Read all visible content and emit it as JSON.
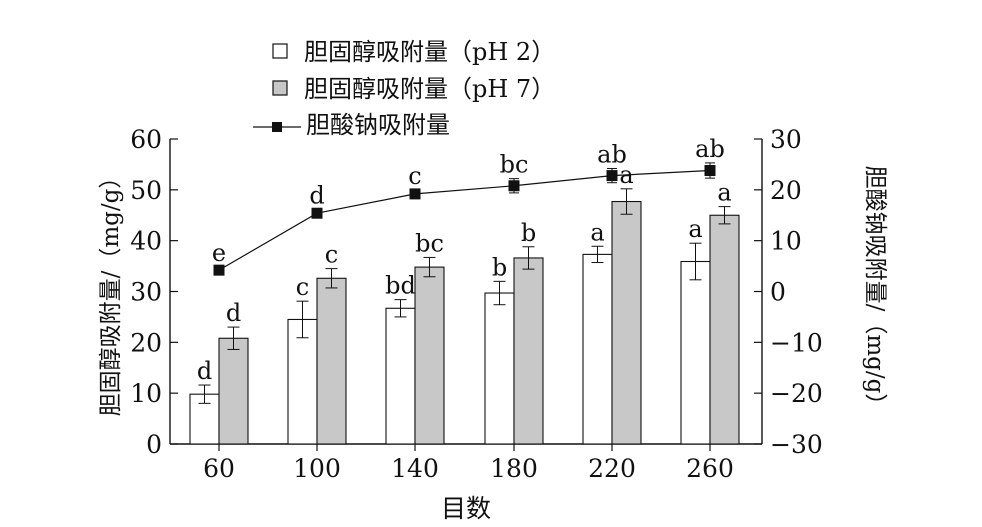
{
  "chart_data": {
    "type": "bar",
    "categories": [
      "60",
      "100",
      "140",
      "180",
      "220",
      "260"
    ],
    "xlabel": "目数",
    "ylabel_left": "胆固醇吸附量/（mg/g）",
    "ylabel_right": "胆酸钠吸附量/（mg/g）",
    "ylim_left": [
      0,
      60
    ],
    "yticks_left": [
      "0",
      "10",
      "20",
      "30",
      "40",
      "50",
      "60"
    ],
    "ylim_right": [
      -30,
      30
    ],
    "yticks_right": [
      "−30",
      "−20",
      "−10",
      "0",
      "10",
      "20",
      "30"
    ],
    "legend_position": "top-left",
    "grid": false,
    "series": [
      {
        "name": "胆固醇吸附量（pH 2）",
        "kind": "bar",
        "axis": "left",
        "fill": "#ffffff",
        "legend_marker": "□",
        "values": [
          9.8,
          24.5,
          26.7,
          29.7,
          37.3,
          35.9
        ],
        "errors": [
          1.8,
          3.6,
          1.7,
          2.3,
          1.6,
          3.6
        ],
        "labels": [
          "d",
          "c",
          "bd",
          "b",
          "a",
          "a"
        ]
      },
      {
        "name": "胆固醇吸附量（pH 7）",
        "kind": "bar",
        "axis": "left",
        "fill": "#c8c8c8",
        "legend_marker": "■",
        "values": [
          20.8,
          32.6,
          34.8,
          36.6,
          47.7,
          45.0
        ],
        "errors": [
          2.2,
          1.9,
          1.9,
          2.2,
          2.5,
          1.7
        ],
        "labels": [
          "d",
          "c",
          "bc",
          "b",
          "a",
          "a"
        ]
      },
      {
        "name": "胆酸钠吸附量",
        "kind": "line",
        "axis": "right",
        "legend_marker": "—■—",
        "values": [
          4.2,
          15.4,
          19.2,
          20.8,
          22.8,
          23.8
        ],
        "errors": [
          0.6,
          0.7,
          0.8,
          1.4,
          1.4,
          1.5
        ],
        "labels": [
          "e",
          "d",
          "c",
          "bc",
          "ab",
          "ab"
        ]
      }
    ]
  }
}
